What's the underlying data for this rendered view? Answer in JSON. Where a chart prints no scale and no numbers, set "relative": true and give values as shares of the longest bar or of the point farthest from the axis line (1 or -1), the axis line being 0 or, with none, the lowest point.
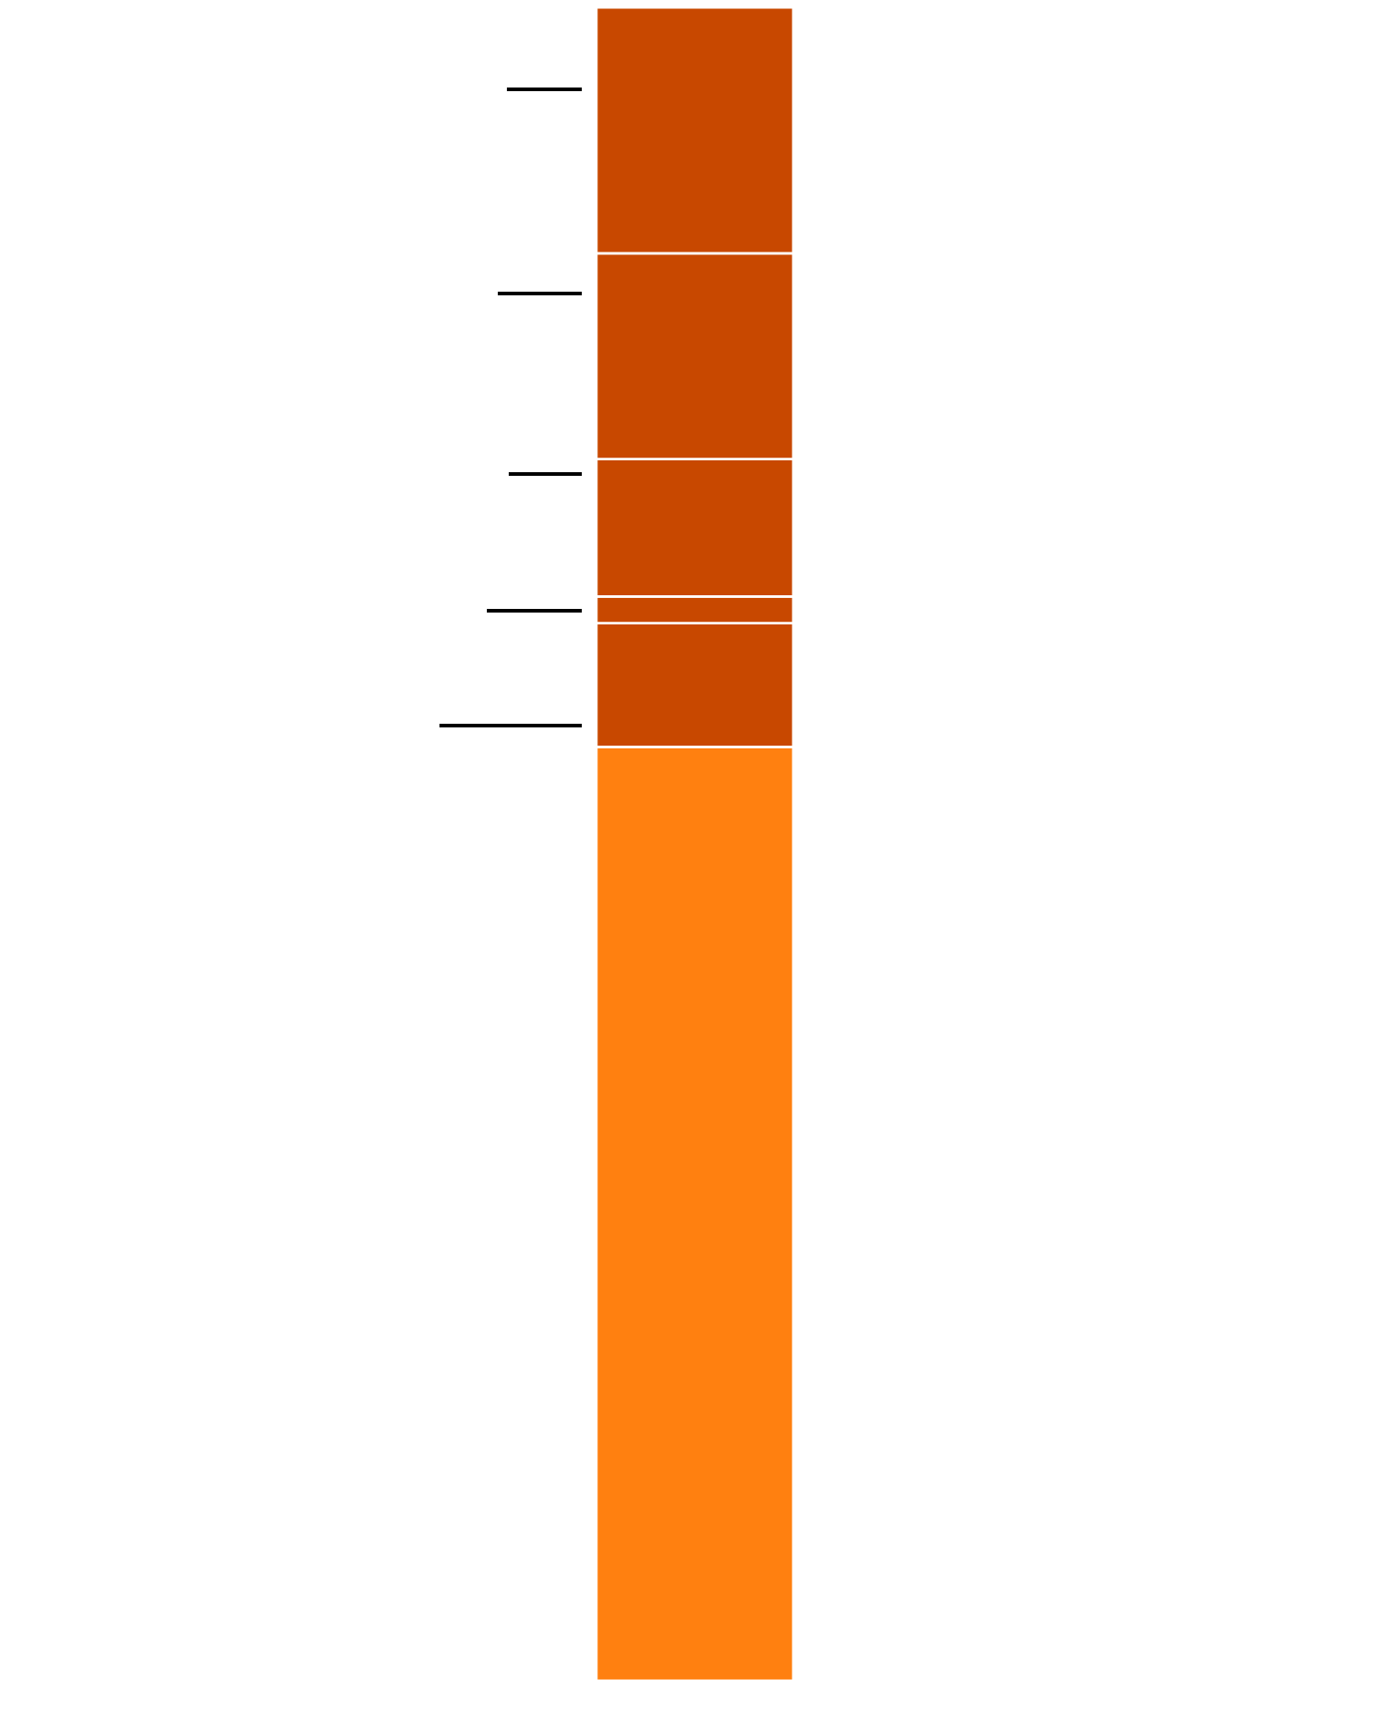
{
  "chart_data": {
    "type": "bar",
    "stacked": true,
    "relative": true,
    "categories": [
      null
    ],
    "series": [
      {
        "color": "#ff8010",
        "values": [
          0.558
        ]
      },
      {
        "color": "#c84800",
        "values": [
          0.074
        ]
      },
      {
        "color": "#c84800",
        "values": [
          0.016
        ]
      },
      {
        "color": "#c84800",
        "values": [
          0.082
        ]
      },
      {
        "color": "#c84800",
        "values": [
          0.123
        ]
      },
      {
        "color": "#c84800",
        "values": [
          0.147
        ]
      }
    ]
  }
}
